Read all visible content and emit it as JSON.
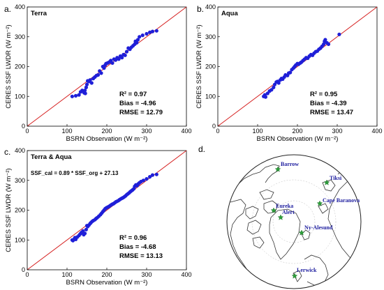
{
  "chart_data": [
    {
      "type": "scatter",
      "panel_letter": "a.",
      "title": "Terra",
      "xlabel": "BSRN Observation (W m⁻²)",
      "ylabel": "CERES SSF LWDR (W m⁻²)",
      "xlim": [
        0,
        400
      ],
      "ylim": [
        0,
        400
      ],
      "xticks": [
        0,
        100,
        200,
        300,
        400
      ],
      "yticks": [
        0,
        100,
        200,
        300,
        400
      ],
      "grid": false,
      "reference_line": "1:1",
      "point_color": "#1f1fd8",
      "line_color": "#d62020",
      "stats": [
        "R² = 0.97",
        "Bias = -4.96",
        "RMSE = 12.79"
      ],
      "equation": "",
      "points": [
        [
          113,
          100
        ],
        [
          122,
          102
        ],
        [
          130,
          105
        ],
        [
          134,
          115
        ],
        [
          138,
          120
        ],
        [
          140,
          117
        ],
        [
          143,
          112
        ],
        [
          145,
          120
        ],
        [
          146,
          110
        ],
        [
          148,
          130
        ],
        [
          150,
          140
        ],
        [
          152,
          152
        ],
        [
          155,
          150
        ],
        [
          158,
          155
        ],
        [
          162,
          145
        ],
        [
          166,
          160
        ],
        [
          170,
          165
        ],
        [
          174,
          170
        ],
        [
          178,
          172
        ],
        [
          182,
          185
        ],
        [
          186,
          178
        ],
        [
          190,
          200
        ],
        [
          193,
          195
        ],
        [
          196,
          205
        ],
        [
          198,
          210
        ],
        [
          202,
          212
        ],
        [
          206,
          215
        ],
        [
          210,
          220
        ],
        [
          214,
          212
        ],
        [
          218,
          225
        ],
        [
          222,
          222
        ],
        [
          226,
          230
        ],
        [
          230,
          225
        ],
        [
          234,
          235
        ],
        [
          238,
          230
        ],
        [
          242,
          240
        ],
        [
          246,
          238
        ],
        [
          250,
          250
        ],
        [
          254,
          262
        ],
        [
          258,
          258
        ],
        [
          262,
          265
        ],
        [
          266,
          270
        ],
        [
          270,
          275
        ],
        [
          272,
          285
        ],
        [
          275,
          280
        ],
        [
          278,
          290
        ],
        [
          282,
          300
        ],
        [
          290,
          305
        ],
        [
          300,
          310
        ],
        [
          308,
          315
        ],
        [
          315,
          318
        ],
        [
          325,
          320
        ]
      ]
    },
    {
      "type": "scatter",
      "panel_letter": "b.",
      "title": "Aqua",
      "xlabel": "BSRN Observation (W m⁻²)",
      "ylabel": "CERES SSF LWDR (W m⁻²)",
      "xlim": [
        0,
        400
      ],
      "ylim": [
        0,
        400
      ],
      "xticks": [
        0,
        100,
        200,
        300,
        400
      ],
      "yticks": [
        0,
        100,
        200,
        300,
        400
      ],
      "grid": false,
      "reference_line": "1:1",
      "point_color": "#1f1fd8",
      "line_color": "#d62020",
      "stats": [
        "R² = 0.95",
        "Bias = -4.39",
        "RMSE = 13.47"
      ],
      "equation": "",
      "points": [
        [
          115,
          100
        ],
        [
          118,
          105
        ],
        [
          120,
          98
        ],
        [
          125,
          110
        ],
        [
          130,
          118
        ],
        [
          135,
          122
        ],
        [
          140,
          130
        ],
        [
          143,
          140
        ],
        [
          147,
          148
        ],
        [
          150,
          150
        ],
        [
          153,
          145
        ],
        [
          157,
          155
        ],
        [
          160,
          160
        ],
        [
          163,
          158
        ],
        [
          167,
          165
        ],
        [
          170,
          172
        ],
        [
          175,
          170
        ],
        [
          178,
          178
        ],
        [
          182,
          180
        ],
        [
          186,
          190
        ],
        [
          190,
          195
        ],
        [
          193,
          200
        ],
        [
          196,
          205
        ],
        [
          200,
          210
        ],
        [
          203,
          208
        ],
        [
          207,
          212
        ],
        [
          210,
          215
        ],
        [
          214,
          220
        ],
        [
          218,
          225
        ],
        [
          222,
          230
        ],
        [
          226,
          228
        ],
        [
          230,
          235
        ],
        [
          234,
          240
        ],
        [
          238,
          238
        ],
        [
          242,
          245
        ],
        [
          246,
          250
        ],
        [
          250,
          252
        ],
        [
          254,
          258
        ],
        [
          258,
          262
        ],
        [
          262,
          268
        ],
        [
          266,
          275
        ],
        [
          268,
          285
        ],
        [
          270,
          290
        ],
        [
          274,
          280
        ],
        [
          278,
          275
        ],
        [
          305,
          308
        ]
      ]
    },
    {
      "type": "scatter",
      "panel_letter": "c.",
      "title": "Terra & Aqua",
      "xlabel": "BSRN Observation (W m⁻²)",
      "ylabel": "CERES SSF LWDR (W m⁻²)",
      "xlim": [
        0,
        400
      ],
      "ylim": [
        0,
        400
      ],
      "xticks": [
        0,
        100,
        200,
        300,
        400
      ],
      "yticks": [
        0,
        100,
        200,
        300,
        400
      ],
      "grid": false,
      "reference_line": "1:1",
      "point_color": "#1f1fd8",
      "line_color": "#d62020",
      "stats": [
        "R² = 0.96",
        "Bias = -4.68",
        "RMSE = 13.13"
      ],
      "equation": "SSF_cal = 0.89 * SSF_org + 27.13",
      "points": [
        [
          113,
          100
        ],
        [
          115,
          98
        ],
        [
          118,
          103
        ],
        [
          120,
          108
        ],
        [
          122,
          102
        ],
        [
          126,
          110
        ],
        [
          130,
          115
        ],
        [
          133,
          120
        ],
        [
          136,
          125
        ],
        [
          140,
          130
        ],
        [
          142,
          118
        ],
        [
          145,
          122
        ],
        [
          148,
          135
        ],
        [
          150,
          148
        ],
        [
          152,
          145
        ],
        [
          155,
          150
        ],
        [
          158,
          155
        ],
        [
          160,
          158
        ],
        [
          163,
          162
        ],
        [
          166,
          165
        ],
        [
          170,
          168
        ],
        [
          173,
          172
        ],
        [
          176,
          175
        ],
        [
          180,
          180
        ],
        [
          184,
          185
        ],
        [
          187,
          190
        ],
        [
          190,
          195
        ],
        [
          193,
          200
        ],
        [
          196,
          205
        ],
        [
          199,
          208
        ],
        [
          202,
          210
        ],
        [
          205,
          212
        ],
        [
          208,
          215
        ],
        [
          211,
          218
        ],
        [
          214,
          220
        ],
        [
          217,
          222
        ],
        [
          220,
          225
        ],
        [
          223,
          228
        ],
        [
          226,
          230
        ],
        [
          229,
          232
        ],
        [
          232,
          235
        ],
        [
          235,
          238
        ],
        [
          238,
          240
        ],
        [
          241,
          242
        ],
        [
          244,
          245
        ],
        [
          247,
          248
        ],
        [
          250,
          252
        ],
        [
          253,
          255
        ],
        [
          256,
          258
        ],
        [
          259,
          262
        ],
        [
          262,
          265
        ],
        [
          265,
          268
        ],
        [
          268,
          272
        ],
        [
          270,
          280
        ],
        [
          273,
          285
        ],
        [
          276,
          282
        ],
        [
          279,
          288
        ],
        [
          282,
          292
        ],
        [
          286,
          296
        ],
        [
          292,
          300
        ],
        [
          300,
          305
        ],
        [
          308,
          312
        ],
        [
          315,
          318
        ],
        [
          325,
          320
        ]
      ]
    }
  ],
  "map": {
    "panel_letter": "d.",
    "station_color": "#2d9e3a",
    "stations": [
      "Barrow",
      "Tiksi",
      "Cape Baranova",
      "Eureka",
      "Alert",
      "Ny-Alesund",
      "Lerwick"
    ]
  }
}
